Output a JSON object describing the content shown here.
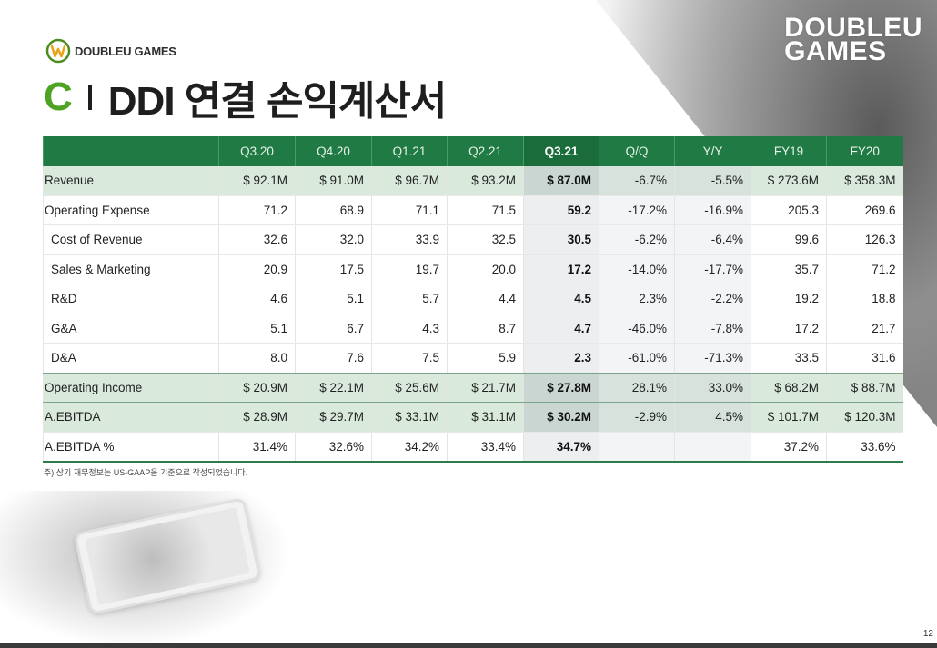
{
  "logo": {
    "text_prefix": "",
    "text": "DOUBLEU GAMES"
  },
  "brand_right": {
    "line1": "DOUBLEU",
    "line2": "GAMES"
  },
  "title": {
    "letter": "C",
    "text": "DDI 연결 손익계산서"
  },
  "table": {
    "headers": [
      "",
      "Q3.20",
      "Q4.20",
      "Q1.21",
      "Q2.21",
      "Q3.21",
      "Q/Q",
      "Y/Y",
      "FY19",
      "FY20"
    ],
    "rows": [
      {
        "label": "Revenue",
        "cells": [
          "$ 92.1M",
          "$ 91.0M",
          "$ 96.7M",
          "$ 93.2M",
          "$ 87.0M",
          "-6.7%",
          "-5.5%",
          "$ 273.6M",
          "$ 358.3M"
        ]
      },
      {
        "label": "Operating Expense",
        "cells": [
          "71.2",
          "68.9",
          "71.1",
          "71.5",
          "59.2",
          "-17.2%",
          "-16.9%",
          "205.3",
          "269.6"
        ]
      },
      {
        "label": "Cost of Revenue",
        "cells": [
          "32.6",
          "32.0",
          "33.9",
          "32.5",
          "30.5",
          "-6.2%",
          "-6.4%",
          "99.6",
          "126.3"
        ]
      },
      {
        "label": "Sales & Marketing",
        "cells": [
          "20.9",
          "17.5",
          "19.7",
          "20.0",
          "17.2",
          "-14.0%",
          "-17.7%",
          "35.7",
          "71.2"
        ]
      },
      {
        "label": "R&D",
        "cells": [
          "4.6",
          "5.1",
          "5.7",
          "4.4",
          "4.5",
          "2.3%",
          "-2.2%",
          "19.2",
          "18.8"
        ]
      },
      {
        "label": "G&A",
        "cells": [
          "5.1",
          "6.7",
          "4.3",
          "8.7",
          "4.7",
          "-46.0%",
          "-7.8%",
          "17.2",
          "21.7"
        ]
      },
      {
        "label": "D&A",
        "cells": [
          "8.0",
          "7.6",
          "7.5",
          "5.9",
          "2.3",
          "-61.0%",
          "-71.3%",
          "33.5",
          "31.6"
        ]
      },
      {
        "label": "Operating Income",
        "cells": [
          "$ 20.9M",
          "$ 22.1M",
          "$ 25.6M",
          "$ 21.7M",
          "$ 27.8M",
          "28.1%",
          "33.0%",
          "$ 68.2M",
          "$ 88.7M"
        ]
      },
      {
        "label": "A.EBITDA",
        "cells": [
          "$ 28.9M",
          "$ 29.7M",
          "$ 33.1M",
          "$ 31.1M",
          "$ 30.2M",
          "-2.9%",
          "4.5%",
          "$ 101.7M",
          "$ 120.3M"
        ]
      },
      {
        "label": "A.EBITDA %",
        "cells": [
          "31.4%",
          "32.6%",
          "34.2%",
          "33.4%",
          "34.7%",
          "",
          "",
          "37.2%",
          "33.6%"
        ]
      }
    ]
  },
  "footnote": "주) 상기 재무정보는 US-GAAP을 기준으로 작성되었습니다.",
  "page_number": "12",
  "colors": {
    "header_green": "#1f7a43",
    "accent_green": "#4ea325",
    "highlight_row": "#d9e9dc"
  }
}
